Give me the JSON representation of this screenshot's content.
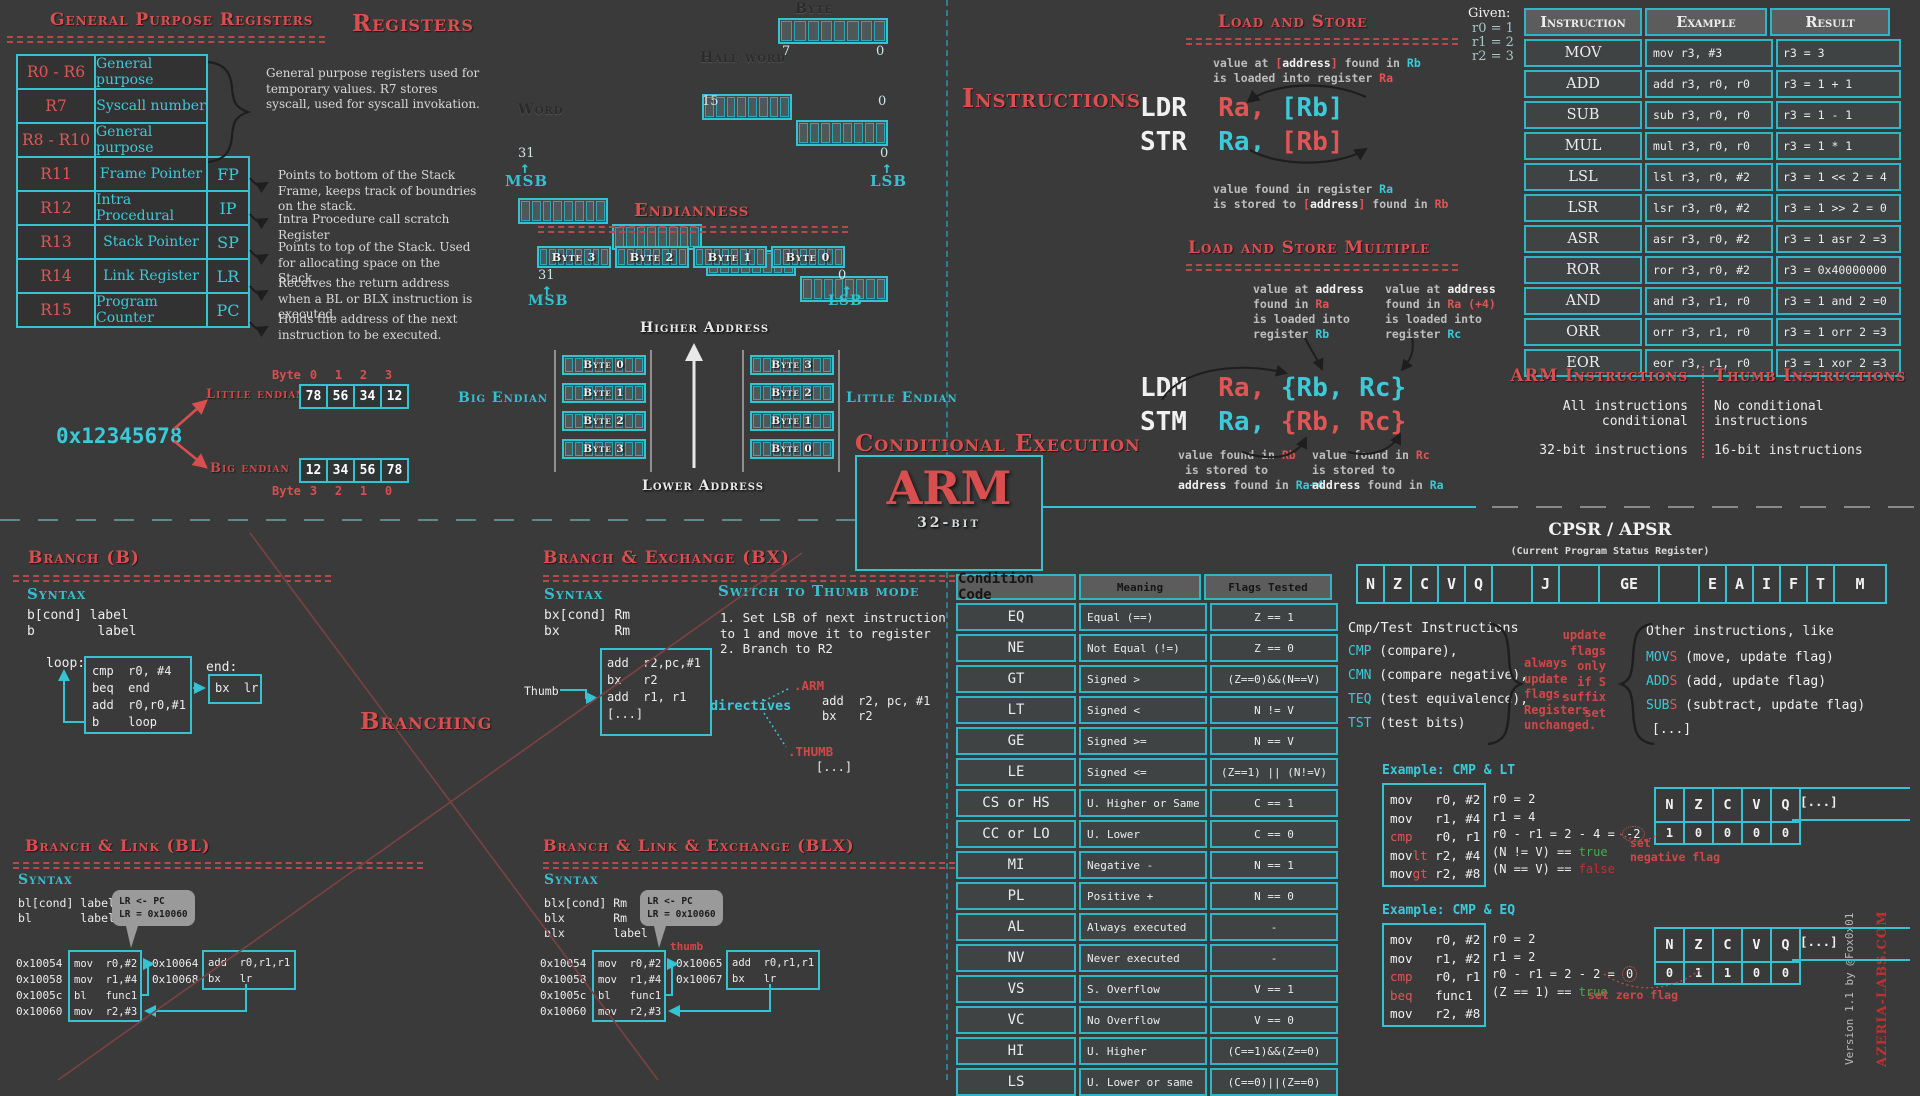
{
  "accent": {
    "teal": "#35c3d4",
    "red": "#d94f4f",
    "code_red": "#e05555",
    "bg": "#3a3a3a",
    "cell_bg": "#4e5858",
    "gray_note": "#bdbdbd",
    "green": "#3fae4e"
  },
  "gpr": {
    "title": "General Purpose Registers",
    "rows": [
      [
        "R0 - R6",
        "General purpose",
        ""
      ],
      [
        "R7",
        "Syscall number",
        ""
      ],
      [
        "R8 - R10",
        "General purpose",
        ""
      ],
      [
        "R11",
        "Frame Pointer",
        "FP"
      ],
      [
        "R12",
        "Intra Procedural",
        "IP"
      ],
      [
        "R13",
        "Stack Pointer",
        "SP"
      ],
      [
        "R14",
        "Link Register",
        "LR"
      ],
      [
        "R15",
        "Program Counter",
        "PC"
      ]
    ],
    "brace_note": "General purpose registers used for temporary values. R7 stores syscall, used for syscall invokation.",
    "notes": [
      "Points to bottom of the Stack Frame, keeps track of boundries on the stack.",
      "Intra Procedure call scratch Register",
      "Points to top of the Stack. Used for allocating space on the Stack.",
      "Receives the return address when a BL or BLX instruction is executed.",
      "Holds the address of the next instruction to be executed."
    ]
  },
  "registers": {
    "title": "Registers",
    "byte_label": "Byte",
    "half_label": "Half word",
    "word_label": "Word",
    "bit7": "7",
    "bit0": "0",
    "bit15": "15",
    "bit31": "31",
    "msb": "MSB",
    "lsb": "LSB",
    "up": "↑"
  },
  "endianness": {
    "title": "Endianness",
    "bytes_row": [
      "Byte 3",
      "Byte 2",
      "Byte 1",
      "Byte 0"
    ],
    "bit31": "31",
    "bit0": "0",
    "msb": "MSB",
    "lsb": "LSB",
    "up": "↑",
    "higher": "Higher Address",
    "lower": "Lower Address",
    "big_label": "Big Endian",
    "little_label": "Little Endian",
    "big_stack": [
      "Byte 0",
      "Byte 1",
      "Byte 2",
      "Byte 3"
    ],
    "little_stack": [
      "Byte 3",
      "Byte 2",
      "Byte 1",
      "Byte 0"
    ],
    "example": {
      "value": "0x12345678",
      "byte_word": "Byte",
      "little_label": "Little endian",
      "big_label": "Big endian",
      "little_idx": [
        "0",
        "1",
        "2",
        "3"
      ],
      "big_idx": [
        "3",
        "2",
        "1",
        "0"
      ],
      "little_bytes": [
        "78",
        "56",
        "34",
        "12"
      ],
      "big_bytes": [
        "12",
        "34",
        "56",
        "78"
      ]
    }
  },
  "logo": {
    "name": "ARM",
    "sub": "32-bit"
  },
  "instructions": {
    "title": "Instructions",
    "given": {
      "label": "Given:",
      "lines": [
        "r0 = 1",
        "r1 = 2",
        "r2 = 3"
      ]
    },
    "load_store": {
      "title": "Load and Store",
      "note_top": [
        [
          "value at ",
          "g"
        ],
        [
          "[",
          "r"
        ],
        [
          "address",
          "w"
        ],
        [
          "]",
          "r"
        ],
        [
          " found in ",
          "g"
        ],
        [
          "Rb",
          "t"
        ],
        [
          "\nis loaded into register ",
          "g"
        ],
        [
          "Ra",
          "r"
        ]
      ],
      "ldr": [
        [
          "LDR",
          "w"
        ],
        [
          "  ",
          "w"
        ],
        [
          "Ra,",
          "r"
        ],
        [
          " ",
          "w"
        ],
        [
          "[Rb]",
          "t"
        ]
      ],
      "str": [
        [
          "STR",
          "w"
        ],
        [
          "  ",
          "w"
        ],
        [
          "Ra,",
          "t"
        ],
        [
          " ",
          "w"
        ],
        [
          "[Rb]",
          "r"
        ]
      ],
      "note_bottom": [
        [
          "value found in register ",
          "g"
        ],
        [
          "Ra",
          "t"
        ],
        [
          "\nis stored to ",
          "g"
        ],
        [
          "[",
          "r"
        ],
        [
          "address",
          "w"
        ],
        [
          "]",
          "r"
        ],
        [
          " found in ",
          "g"
        ],
        [
          "Rb",
          "r"
        ]
      ]
    },
    "table": {
      "headers": [
        "Instruction",
        "Example",
        "Result"
      ],
      "rows": [
        [
          "MOV",
          "mov r3, #3",
          "r3 = 3"
        ],
        [
          "ADD",
          "add r3, r0, r0",
          "r3 = 1 + 1"
        ],
        [
          "SUB",
          "sub r3, r0, r0",
          "r3 = 1 - 1"
        ],
        [
          "MUL",
          "mul r3, r0, r0",
          "r3 = 1 * 1"
        ],
        [
          "LSL",
          "lsl r3, r0, #2",
          "r3 = 1 << 2 = 4"
        ],
        [
          "LSR",
          "lsr r3, r0, #2",
          "r3 = 1 >> 2 = 0"
        ],
        [
          "ASR",
          "asr r3, r0, #2",
          "r3 = 1 asr 2 =3"
        ],
        [
          "ROR",
          "ror r3, r0, #2",
          "r3 = 0x40000000"
        ],
        [
          "AND",
          "and r3, r1, r0",
          "r3 = 1 and 2 =0"
        ],
        [
          "ORR",
          "orr r3, r1, r0",
          "r3 = 1 orr 2 =3"
        ],
        [
          "EOR",
          "eor r3, r1, r0",
          "r3 = 1 xor 2 =3"
        ]
      ]
    },
    "lsm": {
      "title": "Load and Store Multiple",
      "note_left": [
        [
          "value at ",
          "g"
        ],
        [
          "address",
          "w"
        ],
        [
          "\nfound in ",
          "g"
        ],
        [
          "Ra",
          "r"
        ],
        [
          "\nis loaded into\nregister ",
          "g"
        ],
        [
          "Rb",
          "t"
        ]
      ],
      "note_right": [
        [
          "value at ",
          "g"
        ],
        [
          "address",
          "w"
        ],
        [
          "\nfound in ",
          "g"
        ],
        [
          "Ra (+4)",
          "r"
        ],
        [
          "\nis loaded into\nregister ",
          "g"
        ],
        [
          "Rc",
          "t"
        ]
      ],
      "ldm": [
        [
          "LDM",
          "w"
        ],
        [
          "  ",
          "w"
        ],
        [
          "Ra,",
          "r"
        ],
        [
          " ",
          "w"
        ],
        [
          "{Rb, Rc}",
          "t"
        ]
      ],
      "stm": [
        [
          "STM",
          "w"
        ],
        [
          "  ",
          "w"
        ],
        [
          "Ra,",
          "t"
        ],
        [
          " ",
          "w"
        ],
        [
          "{Rb, Rc}",
          "r"
        ]
      ],
      "note_bl": [
        [
          "value found in ",
          "g"
        ],
        [
          "Rb",
          "r"
        ],
        [
          "\n is stored to\n",
          "g"
        ],
        [
          "address",
          "w"
        ],
        [
          " found in ",
          "g"
        ],
        [
          "Ra+4",
          "t"
        ]
      ],
      "note_br": [
        [
          "value found in ",
          "g"
        ],
        [
          "Rc",
          "r"
        ],
        [
          "\nis stored to\n",
          "g"
        ],
        [
          "address",
          "w"
        ],
        [
          " found in ",
          "g"
        ],
        [
          "Ra",
          "t"
        ]
      ]
    },
    "arm_thumb": {
      "arm_title": "ARM Instructions",
      "arm_lines": [
        "All instructions conditional",
        "32-bit instructions"
      ],
      "thumb_title": "Thumb Instructions",
      "thumb_lines": [
        "No conditional instructions",
        "16-bit instructions"
      ]
    }
  },
  "conditional": {
    "title": "Conditional Execution",
    "table": {
      "headers": [
        "Condition Code",
        "Meaning",
        "Flags Tested"
      ],
      "rows": [
        [
          "EQ",
          "Equal (==)",
          "Z == 1"
        ],
        [
          "NE",
          "Not Equal (!=)",
          "Z == 0"
        ],
        [
          "GT",
          "Signed >",
          "(Z==0)&&(N==V)"
        ],
        [
          "LT",
          "Signed <",
          "N != V"
        ],
        [
          "GE",
          "Signed >=",
          "N == V"
        ],
        [
          "LE",
          "Signed <=",
          "(Z==1) || (N!=V)"
        ],
        [
          "CS or HS",
          "U. Higher or Same",
          "C == 1"
        ],
        [
          "CC or LO",
          "U. Lower",
          "C == 0"
        ],
        [
          "MI",
          "Negative -",
          "N == 1"
        ],
        [
          "PL",
          "Positive +",
          "N == 0"
        ],
        [
          "AL",
          "Always executed",
          "-"
        ],
        [
          "NV",
          "Never executed",
          "-"
        ],
        [
          "VS",
          "S. Overflow",
          "V == 1"
        ],
        [
          "VC",
          "No Overflow",
          "V == 0"
        ],
        [
          "HI",
          "U. Higher",
          "(C==1)&&(Z==0)"
        ],
        [
          "LS",
          "U. Lower or same",
          "(C==0)||(Z==0)"
        ]
      ]
    },
    "cpsr": {
      "title": "CPSR / APSR",
      "sub": "(Current Program Status Register)",
      "cells": [
        "N",
        "Z",
        "C",
        "V",
        "Q",
        "",
        "J",
        "",
        "GE",
        "",
        "E",
        "A",
        "I",
        "F",
        "T",
        "M"
      ]
    },
    "cmp_test": {
      "heading": "Cmp/Test Instructions",
      "items": [
        [
          [
            "CMP",
            "t"
          ],
          [
            " (compare),",
            "w"
          ]
        ],
        [
          [
            "CMN",
            "t"
          ],
          [
            " (compare negative),",
            "w"
          ]
        ],
        [
          [
            "TEQ",
            "t"
          ],
          [
            " (test equivalence),",
            "w"
          ]
        ],
        [
          [
            "TST",
            "t"
          ],
          [
            " (test bits)",
            "w"
          ]
        ]
      ],
      "always_note": "always update flags. Registers unchanged.",
      "s_note": "update flags only if S suffix set",
      "other_heading": "Other instructions, like",
      "others": [
        [
          [
            "MOV",
            "t"
          ],
          [
            "S",
            "r"
          ],
          [
            " (move, update flag)",
            "w"
          ]
        ],
        [
          [
            "ADD",
            "t"
          ],
          [
            "S",
            "r"
          ],
          [
            " (add, update flag)",
            "w"
          ]
        ],
        [
          [
            "SUB",
            "t"
          ],
          [
            "S",
            "r"
          ],
          [
            " (subtract, update flag)",
            "w"
          ]
        ],
        [
          [
            "[...]",
            "w"
          ]
        ]
      ]
    },
    "example_lt": {
      "title": "Example: CMP & LT",
      "code": [
        [
          [
            "mov   r0, #2",
            "w"
          ]
        ],
        [
          [
            "mov   r1, #4",
            "w"
          ]
        ],
        [
          [
            "cmp",
            "r"
          ],
          [
            "   r0, r1",
            "w"
          ]
        ],
        [
          [
            "mov",
            "w"
          ],
          [
            "lt",
            "r"
          ],
          [
            " r2, #4",
            "w"
          ]
        ],
        [
          [
            "mov",
            "w"
          ],
          [
            "gt",
            "r"
          ],
          [
            " r2, #8",
            "w"
          ]
        ]
      ],
      "notes": [
        [
          [
            "r0 = 2",
            "w"
          ]
        ],
        [
          [
            "r1 = 4",
            "w"
          ]
        ],
        [
          [
            "r0 - r1 = 2 - 4 = ",
            "w"
          ],
          [
            "-2",
            "circ"
          ]
        ],
        [
          [
            "(N != V) == ",
            "w"
          ],
          [
            "true",
            "green"
          ]
        ],
        [
          [
            "(N == V) == ",
            "w"
          ],
          [
            "false",
            "red2"
          ]
        ]
      ],
      "set_note": "set\nnegative flag",
      "flags_cols": [
        "N",
        "Z",
        "C",
        "V",
        "Q"
      ],
      "flags_more": "[...]",
      "flags_vals": [
        "1",
        "0",
        "0",
        "0",
        "0"
      ]
    },
    "example_eq": {
      "title": "Example: CMP & EQ",
      "code": [
        [
          [
            "mov   r0, #2",
            "w"
          ]
        ],
        [
          [
            "mov   r1, #2",
            "w"
          ]
        ],
        [
          [
            "cmp",
            "r"
          ],
          [
            "   r0, r1",
            "w"
          ]
        ],
        [
          [
            "beq",
            "r"
          ],
          [
            "   func1",
            "w"
          ]
        ],
        [
          [
            "mov   r2, #8",
            "w"
          ]
        ]
      ],
      "notes": [
        [
          [
            "r0 = 2",
            "w"
          ]
        ],
        [
          [
            "r1 = 2",
            "w"
          ]
        ],
        [
          [
            "r0 - r1 = 2 - 2 = ",
            "w"
          ],
          [
            "0",
            "circ"
          ]
        ],
        [
          [
            "(Z == 1) == ",
            "w"
          ],
          [
            "true",
            "green"
          ]
        ]
      ],
      "set_note": "set zero flag",
      "flags_cols": [
        "N",
        "Z",
        "C",
        "V",
        "Q"
      ],
      "flags_more": "[...]",
      "flags_vals": [
        "0",
        "1",
        "1",
        "0",
        "0"
      ]
    }
  },
  "branching": {
    "big_title": "Branching",
    "b": {
      "title": "Branch (B)",
      "syntax_label": "Syntax",
      "syntax": "b[cond] label\nb        label",
      "loop_label": "loop:",
      "end_label": "end:",
      "loop_code": [
        "cmp  r0, #4",
        "beq  end",
        "add  r0,r0,#1",
        "b    loop"
      ],
      "end_code": [
        "bx  lr"
      ]
    },
    "bx": {
      "title": "Branch & Exchange (BX)",
      "syntax_label": "Syntax",
      "syntax": "bx[cond] Rm\nbx       Rm",
      "thumb_label": "Thumb",
      "code": [
        "add  r2,pc,#1",
        "bx   r2",
        "add  r1, r1",
        "[...]"
      ],
      "switch_title": "Switch to Thumb mode",
      "switch_lines": [
        "1. Set LSB of next instruction",
        "to 1 and move it to register",
        "2. Branch to R2"
      ],
      "directives_label": "directives",
      "arm_directive": ".ARM",
      "arm_code": [
        "add  r2, pc, #1",
        "bx   r2"
      ],
      "thumb_directive": ".THUMB",
      "thumb_code": "[...]"
    },
    "bl": {
      "title": "Branch & Link (BL)",
      "syntax_label": "Syntax",
      "syntax": "bl[cond] label\nbl       label",
      "callout": "LR <- PC\nLR = 0x10060",
      "addrs": [
        "0x10054",
        "0x10058",
        "0x1005c",
        "0x10060"
      ],
      "code": [
        "mov  r0,#2",
        "mov  r1,#4",
        "bl   func1",
        "mov  r2,#3"
      ],
      "target_addrs": [
        "0x10064",
        "0x10068"
      ],
      "target_code": [
        "add  r0,r1,r1",
        "bx   lr"
      ]
    },
    "blx": {
      "title": "Branch & Link & Exchange (BLX)",
      "syntax_label": "Syntax",
      "syntax": "blx[cond] Rm\nblx       Rm\nblx       label",
      "callout": "LR <- PC\nLR = 0x10060",
      "thumb_note": "thumb",
      "addrs": [
        "0x10054",
        "0x10058",
        "0x1005c",
        "0x10060"
      ],
      "code": [
        "mov  r0,#2",
        "mov  r1,#4",
        "bl   func1",
        "mov  r2,#3"
      ],
      "target_addrs": [
        "0x10065",
        "0x10067"
      ],
      "target_code": [
        "add  r0,r1,r1",
        "bx   lr"
      ]
    }
  },
  "footer": {
    "version": "Version 1.1 by @Fox0x01",
    "site": "AZERIA-LABS.COM"
  }
}
